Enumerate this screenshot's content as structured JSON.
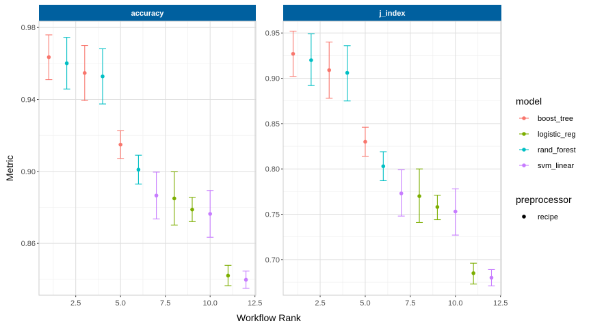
{
  "chart_data": {
    "type": "scatter",
    "xlabel": "Workflow Rank",
    "ylabel": "Metric",
    "strip_color": "#00609f",
    "legend_position": "right",
    "legend": {
      "model_title": "model",
      "models": [
        {
          "name": "boost_tree",
          "color": "#F8766D"
        },
        {
          "name": "logistic_reg",
          "color": "#7CAE00"
        },
        {
          "name": "rand_forest",
          "color": "#00BFC4"
        },
        {
          "name": "svm_linear",
          "color": "#C77CFF"
        }
      ],
      "preprocessor_title": "preprocessor",
      "preprocessors": [
        "recipe"
      ]
    },
    "x_ticks": [
      2.5,
      5.0,
      7.5,
      10.0,
      12.5
    ],
    "x_tick_labels": [
      "2.5",
      "5.0",
      "7.5",
      "10.0",
      "12.5"
    ],
    "xlim": [
      0.45,
      12.55
    ],
    "panels": [
      {
        "title": "accuracy",
        "ylim": [
          0.8312,
          0.9835
        ],
        "y_ticks": [
          0.86,
          0.9,
          0.94,
          0.98
        ],
        "y_tick_labels": [
          "0.86",
          "0.90",
          "0.94",
          "0.98"
        ],
        "points": [
          {
            "rank": 1,
            "model": "boost_tree",
            "mean": 0.9635,
            "lower": 0.951,
            "upper": 0.9759
          },
          {
            "rank": 2,
            "model": "rand_forest",
            "mean": 0.9601,
            "lower": 0.9458,
            "upper": 0.9745
          },
          {
            "rank": 3,
            "model": "boost_tree",
            "mean": 0.9547,
            "lower": 0.9394,
            "upper": 0.97
          },
          {
            "rank": 4,
            "model": "rand_forest",
            "mean": 0.9528,
            "lower": 0.9375,
            "upper": 0.9682
          },
          {
            "rank": 5,
            "model": "boost_tree",
            "mean": 0.9149,
            "lower": 0.9072,
            "upper": 0.9226
          },
          {
            "rank": 6,
            "model": "rand_forest",
            "mean": 0.901,
            "lower": 0.893,
            "upper": 0.909
          },
          {
            "rank": 7,
            "model": "svm_linear",
            "mean": 0.8866,
            "lower": 0.8736,
            "upper": 0.8996
          },
          {
            "rank": 8,
            "model": "logistic_reg",
            "mean": 0.885,
            "lower": 0.8702,
            "upper": 0.8998
          },
          {
            "rank": 9,
            "model": "logistic_reg",
            "mean": 0.8788,
            "lower": 0.8721,
            "upper": 0.8856
          },
          {
            "rank": 10,
            "model": "svm_linear",
            "mean": 0.8764,
            "lower": 0.8634,
            "upper": 0.8894
          },
          {
            "rank": 11,
            "model": "logistic_reg",
            "mean": 0.8421,
            "lower": 0.8365,
            "upper": 0.8478
          },
          {
            "rank": 12,
            "model": "svm_linear",
            "mean": 0.8398,
            "lower": 0.835,
            "upper": 0.8446
          }
        ]
      },
      {
        "title": "j_index",
        "ylim": [
          0.6607,
          0.963
        ],
        "y_ticks": [
          0.7,
          0.75,
          0.8,
          0.85,
          0.9,
          0.95
        ],
        "y_tick_labels": [
          "0.70",
          "0.75",
          "0.80",
          "0.85",
          "0.90",
          "0.95"
        ],
        "points": [
          {
            "rank": 1,
            "model": "boost_tree",
            "mean": 0.927,
            "lower": 0.902,
            "upper": 0.952
          },
          {
            "rank": 2,
            "model": "rand_forest",
            "mean": 0.92,
            "lower": 0.892,
            "upper": 0.949
          },
          {
            "rank": 3,
            "model": "boost_tree",
            "mean": 0.909,
            "lower": 0.878,
            "upper": 0.94
          },
          {
            "rank": 4,
            "model": "rand_forest",
            "mean": 0.906,
            "lower": 0.875,
            "upper": 0.936
          },
          {
            "rank": 5,
            "model": "boost_tree",
            "mean": 0.83,
            "lower": 0.814,
            "upper": 0.846
          },
          {
            "rank": 6,
            "model": "rand_forest",
            "mean": 0.803,
            "lower": 0.787,
            "upper": 0.819
          },
          {
            "rank": 7,
            "model": "svm_linear",
            "mean": 0.773,
            "lower": 0.748,
            "upper": 0.799
          },
          {
            "rank": 8,
            "model": "logistic_reg",
            "mean": 0.77,
            "lower": 0.741,
            "upper": 0.8
          },
          {
            "rank": 9,
            "model": "logistic_reg",
            "mean": 0.758,
            "lower": 0.744,
            "upper": 0.771
          },
          {
            "rank": 10,
            "model": "svm_linear",
            "mean": 0.753,
            "lower": 0.727,
            "upper": 0.778
          },
          {
            "rank": 11,
            "model": "logistic_reg",
            "mean": 0.685,
            "lower": 0.673,
            "upper": 0.696
          },
          {
            "rank": 12,
            "model": "svm_linear",
            "mean": 0.68,
            "lower": 0.671,
            "upper": 0.689
          }
        ]
      }
    ]
  }
}
